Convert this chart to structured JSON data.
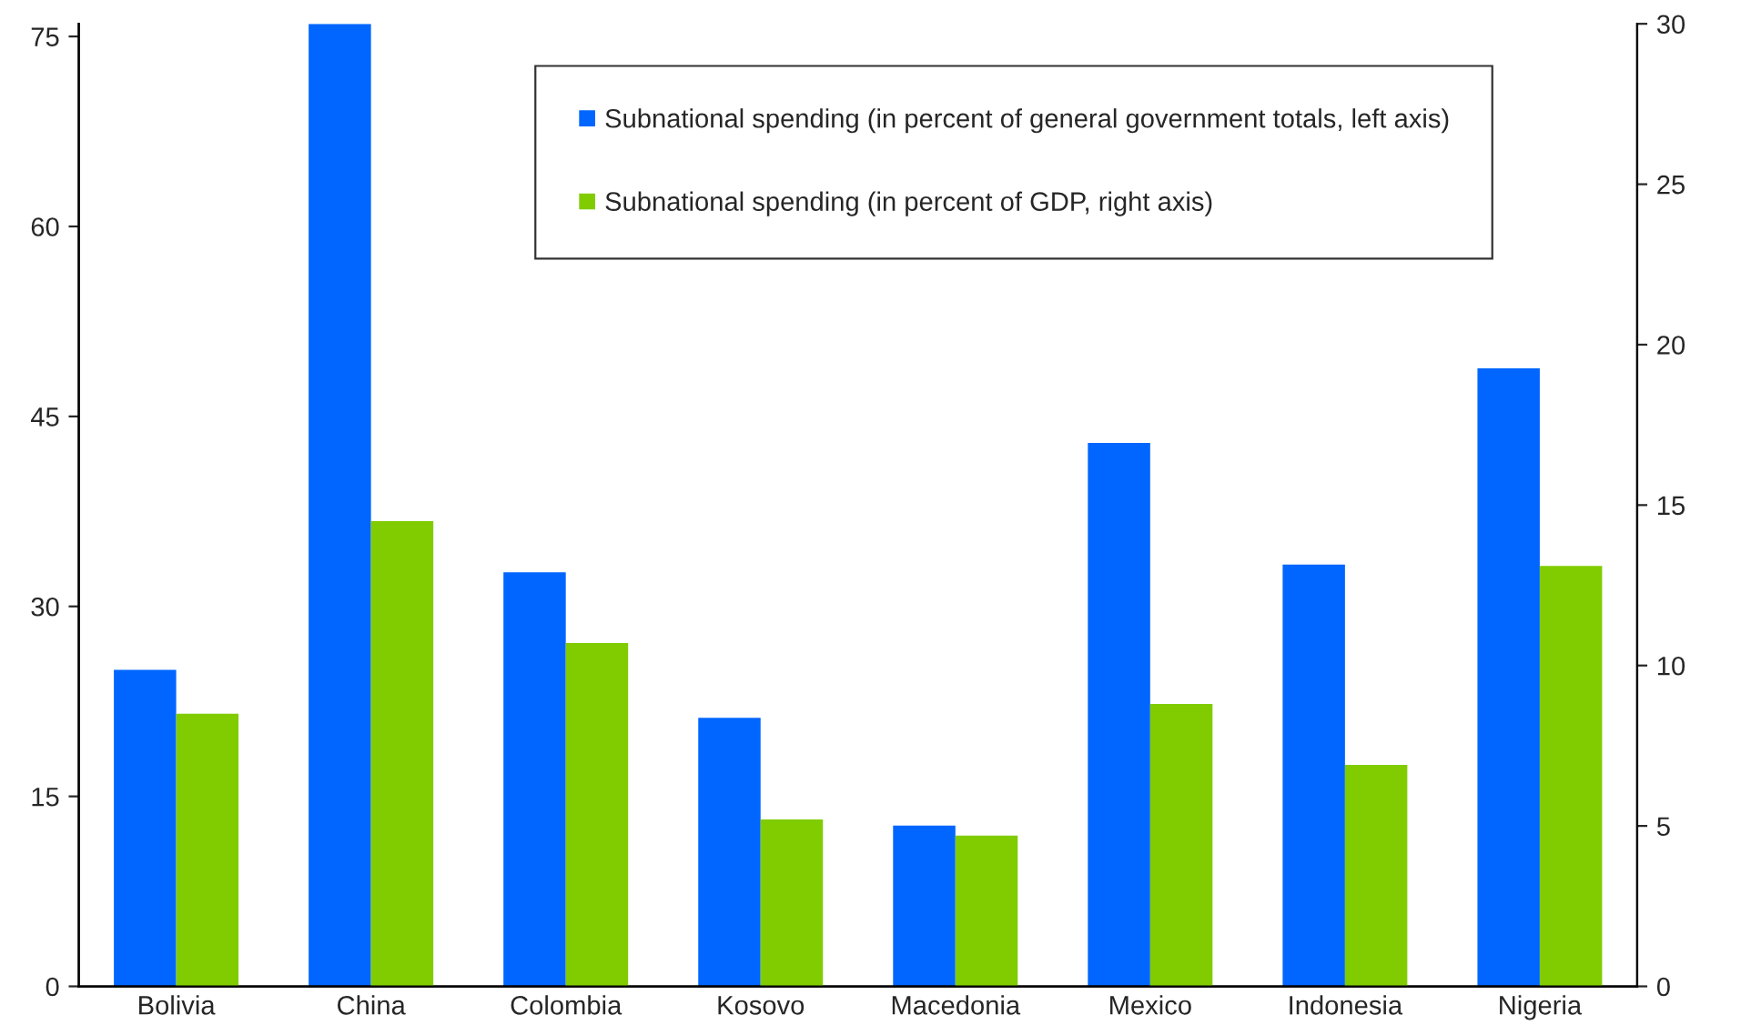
{
  "chart_data": {
    "type": "bar",
    "categories": [
      "Bolivia",
      "China",
      "Colombia",
      "Kosovo",
      "Macedonia",
      "Mexico",
      "Indonesia",
      "Nigeria"
    ],
    "series": [
      {
        "name": "Subnational spending (in percent of general government totals, left axis)",
        "color": "#0066ff",
        "values": [
          25.0,
          76.0,
          32.7,
          21.2,
          12.7,
          42.9,
          33.3,
          48.8
        ]
      },
      {
        "name": "Subnational spending (in percent of GDP, right axis)",
        "color": "#80cc00",
        "axis": "y2",
        "values": [
          8.5,
          14.5,
          10.7,
          5.2,
          4.7,
          8.8,
          6.9,
          13.1
        ]
      }
    ],
    "ylim": [
      0,
      76
    ],
    "yticks": [
      0,
      15,
      30,
      45,
      60,
      75
    ],
    "y2lim": [
      0,
      30
    ],
    "y2ticks": [
      0,
      5,
      10,
      15,
      20,
      25,
      30
    ],
    "grid": false,
    "legend": "top"
  }
}
